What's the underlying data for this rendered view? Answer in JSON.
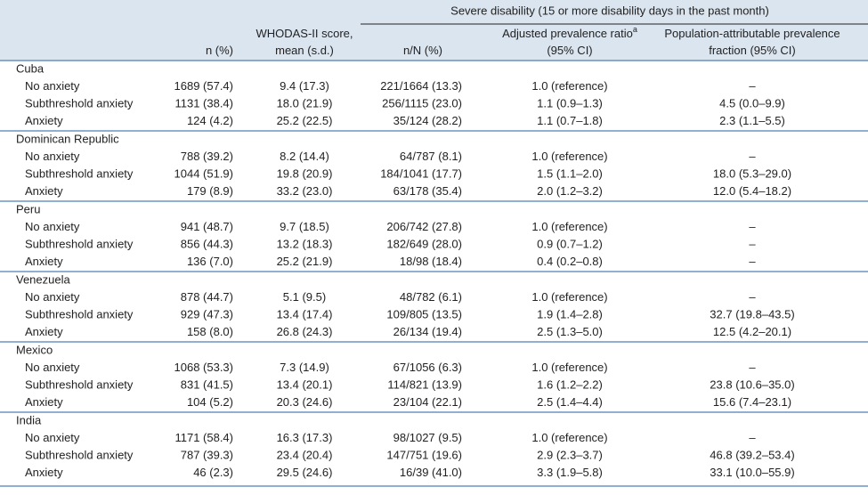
{
  "header": {
    "group": "Severe disability (15 or more disability days in the past month)",
    "columns": [
      {
        "lines": [
          "n (%)"
        ]
      },
      {
        "lines": [
          "WHODAS-II score,",
          "mean (s.d.)"
        ]
      },
      {
        "lines": [
          "n/N (%)"
        ]
      },
      {
        "lines": [
          "Adjusted prevalence ratio",
          "(95% CI)"
        ],
        "superscript": "a"
      },
      {
        "lines": [
          "Population-attributable prevalence",
          "fraction (95% CI)"
        ]
      }
    ]
  },
  "groups": [
    {
      "name": "Cuba",
      "rows": [
        [
          "No anxiety",
          "1689 (57.4)",
          "9.4 (17.3)",
          "221/1664 (13.3)",
          "1.0 (reference)",
          "–"
        ],
        [
          "Subthreshold anxiety",
          "1131 (38.4)",
          "18.0 (21.9)",
          "256/1115 (23.0)",
          "1.1 (0.9–1.3)",
          "4.5 (0.0–9.9)"
        ],
        [
          "Anxiety",
          "124 (4.2)",
          "25.2 (22.5)",
          "35/124 (28.2)",
          "1.1 (0.7–1.8)",
          "2.3 (1.1–5.5)"
        ]
      ]
    },
    {
      "name": "Dominican Republic",
      "rows": [
        [
          "No anxiety",
          "788 (39.2)",
          "8.2 (14.4)",
          "64/787 (8.1)",
          "1.0 (reference)",
          "–"
        ],
        [
          "Subthreshold anxiety",
          "1044 (51.9)",
          "19.8 (20.9)",
          "184/1041 (17.7)",
          "1.5 (1.1–2.0)",
          "18.0 (5.3–29.0)"
        ],
        [
          "Anxiety",
          "179 (8.9)",
          "33.2 (23.0)",
          "63/178 (35.4)",
          "2.0 (1.2–3.2)",
          "12.0 (5.4–18.2)"
        ]
      ]
    },
    {
      "name": "Peru",
      "rows": [
        [
          "No anxiety",
          "941 (48.7)",
          "9.7 (18.5)",
          "206/742 (27.8)",
          "1.0 (reference)",
          "–"
        ],
        [
          "Subthreshold anxiety",
          "856 (44.3)",
          "13.2 (18.3)",
          "182/649 (28.0)",
          "0.9 (0.7–1.2)",
          "–"
        ],
        [
          "Anxiety",
          "136 (7.0)",
          "25.2 (21.9)",
          "18/98 (18.4)",
          "0.4 (0.2–0.8)",
          "–"
        ]
      ]
    },
    {
      "name": "Venezuela",
      "rows": [
        [
          "No anxiety",
          "878 (44.7)",
          "5.1 (9.5)",
          "48/782 (6.1)",
          "1.0 (reference)",
          "–"
        ],
        [
          "Subthreshold anxiety",
          "929 (47.3)",
          "13.4 (17.4)",
          "109/805 (13.5)",
          "1.9 (1.4–2.8)",
          "32.7 (19.8–43.5)"
        ],
        [
          "Anxiety",
          "158 (8.0)",
          "26.8 (24.3)",
          "26/134 (19.4)",
          "2.5 (1.3–5.0)",
          "12.5 (4.2–20.1)"
        ]
      ]
    },
    {
      "name": "Mexico",
      "rows": [
        [
          "No anxiety",
          "1068 (53.3)",
          "7.3 (14.9)",
          "67/1056 (6.3)",
          "1.0 (reference)",
          "–"
        ],
        [
          "Subthreshold anxiety",
          "831 (41.5)",
          "13.4 (20.1)",
          "114/821 (13.9)",
          "1.6 (1.2–2.2)",
          "23.8 (10.6–35.0)"
        ],
        [
          "Anxiety",
          "104 (5.2)",
          "20.3 (24.6)",
          "23/104 (22.1)",
          "2.5 (1.4–4.4)",
          "15.6 (7.4–23.1)"
        ]
      ]
    },
    {
      "name": "India",
      "rows": [
        [
          "No anxiety",
          "1171 (58.4)",
          "16.3 (17.3)",
          "98/1027 (9.5)",
          "1.0 (reference)",
          "–"
        ],
        [
          "Subthreshold anxiety",
          "787 (39.3)",
          "23.4 (20.4)",
          "147/751 (19.6)",
          "2.9 (2.3–3.7)",
          "46.8 (39.2–53.4)"
        ],
        [
          "Anxiety",
          "46 (2.3)",
          "29.5 (24.6)",
          "16/39 (41.0)",
          "3.3 (1.9–5.8)",
          "33.1 (10.0–55.9)"
        ]
      ]
    }
  ]
}
